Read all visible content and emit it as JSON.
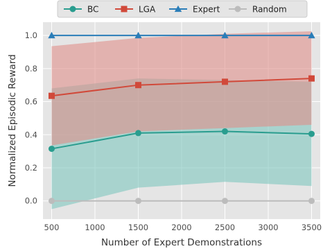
{
  "chart_data": {
    "type": "line",
    "xlabel": "Number of Expert Demonstrations",
    "ylabel": "Normalized Episodic Reward",
    "xlim": [
      400,
      3600
    ],
    "ylim": [
      -0.11,
      1.08
    ],
    "x_ticks": [
      500,
      1000,
      1500,
      2000,
      2500,
      3000,
      3500
    ],
    "y_ticks": [
      0.0,
      0.2,
      0.4,
      0.6,
      0.8,
      1.0
    ],
    "x_tick_labels": [
      "500",
      "1000",
      "1500",
      "2000",
      "2500",
      "3000",
      "3500"
    ],
    "y_tick_labels": [
      "0.0",
      "0.2",
      "0.4",
      "0.6",
      "0.8",
      "1.0"
    ],
    "grid": true,
    "legend_position": "top",
    "x": [
      500,
      1500,
      2500,
      3500
    ],
    "series": [
      {
        "name": "BC",
        "values": [
          0.315,
          0.41,
          0.42,
          0.405
        ],
        "lower": [
          -0.05,
          0.08,
          0.115,
          0.09
        ],
        "upper": [
          0.68,
          0.74,
          0.73,
          0.72
        ],
        "color": "#2a9d8f",
        "band_color": "#7fc6be",
        "marker": "circle"
      },
      {
        "name": "LGA",
        "values": [
          0.635,
          0.7,
          0.72,
          0.74
        ],
        "lower": [
          0.335,
          0.42,
          0.44,
          0.46
        ],
        "upper": [
          0.935,
          0.985,
          1.01,
          1.025
        ],
        "color": "#d1493a",
        "band_color": "#e0908a",
        "marker": "square"
      },
      {
        "name": "Expert",
        "values": [
          1.0,
          1.0,
          1.0,
          1.0
        ],
        "color": "#2a7db8",
        "marker": "triangle"
      },
      {
        "name": "Random",
        "values": [
          0.0,
          0.0,
          0.0,
          0.0
        ],
        "color": "#bcbcbc",
        "marker": "circle"
      }
    ]
  }
}
